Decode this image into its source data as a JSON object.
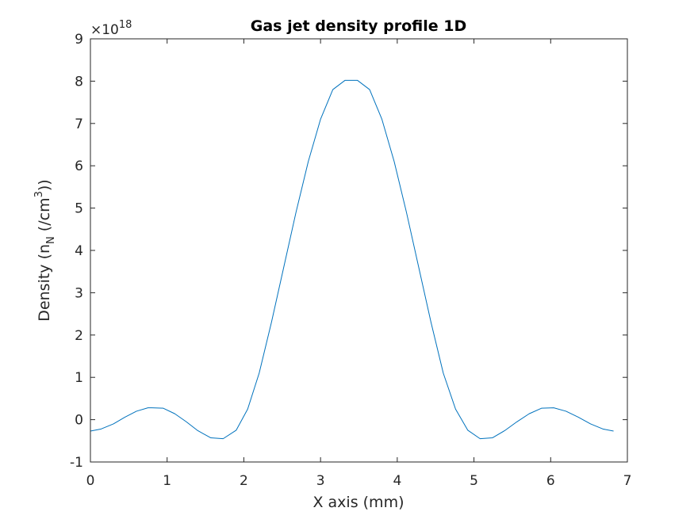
{
  "chart_data": {
    "type": "line",
    "title": "Gas jet density profile 1D",
    "xlabel": "X axis (mm)",
    "ylabel": {
      "prefix": "Density (n",
      "subscript": "N",
      "middle": " (/cm",
      "superscript": "3",
      "suffix": "))"
    },
    "exponent": {
      "base": "×10",
      "power": "18"
    },
    "xlim": [
      0,
      7
    ],
    "ylim": [
      -1,
      9
    ],
    "xticks": [
      0,
      1,
      2,
      3,
      4,
      5,
      6,
      7
    ],
    "xtick_labels": [
      "0",
      "1",
      "2",
      "3",
      "4",
      "5",
      "6",
      "7"
    ],
    "yticks": [
      -1,
      0,
      1,
      2,
      3,
      4,
      5,
      6,
      7,
      8,
      9
    ],
    "ytick_labels": [
      "-1",
      "0",
      "1",
      "2",
      "3",
      "4",
      "5",
      "6",
      "7",
      "8",
      "9"
    ],
    "grid": false,
    "series": [
      {
        "color": "#0072bd",
        "x": [
          0,
          0.14,
          0.3,
          0.45,
          0.6,
          0.75,
          0.8,
          0.95,
          1.1,
          1.25,
          1.4,
          1.57,
          1.73,
          1.9,
          2.05,
          2.2,
          2.36,
          2.52,
          2.68,
          2.84,
          3.0,
          3.16,
          3.32,
          3.48,
          3.64,
          3.8,
          3.96,
          4.12,
          4.28,
          4.44,
          4.6,
          4.76,
          4.92,
          5.08,
          5.24,
          5.4,
          5.56,
          5.72,
          5.88,
          6.04,
          6.2,
          6.36,
          6.52,
          6.68,
          6.82
        ],
        "y": [
          -0.27,
          -0.22,
          -0.1,
          0.06,
          0.2,
          0.28,
          0.28,
          0.27,
          0.14,
          -0.05,
          -0.26,
          -0.43,
          -0.45,
          -0.25,
          0.25,
          1.1,
          2.3,
          3.6,
          4.9,
          6.1,
          7.1,
          7.8,
          8.02,
          8.02,
          7.8,
          7.1,
          6.1,
          4.9,
          3.6,
          2.3,
          1.1,
          0.25,
          -0.25,
          -0.45,
          -0.43,
          -0.26,
          -0.05,
          0.14,
          0.27,
          0.28,
          0.2,
          0.06,
          -0.1,
          -0.22,
          -0.27
        ]
      }
    ]
  }
}
